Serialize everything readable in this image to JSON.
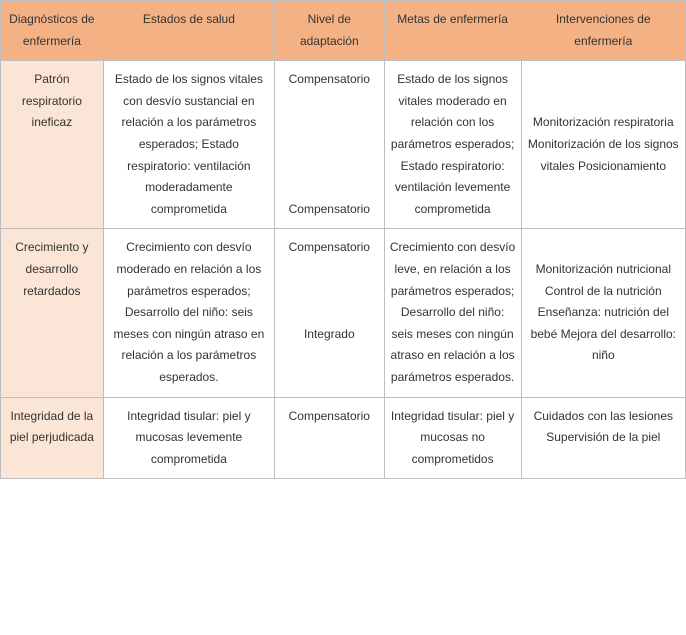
{
  "table": {
    "headers": [
      "Diagnósticos de enfermería",
      "Estados de salud",
      "Nivel de adaptación",
      "Metas de enfermería",
      "Intervenciones de enfermería"
    ],
    "rows": [
      {
        "diagnostico": "Patrón respiratorio ineficaz",
        "estado": "Estado de los signos vitales con desvío sustancial en relación a los parámetros esperados; Estado respiratorio: ventilación moderadamente comprometida",
        "nivel": "Compensatorio\n\n\n\n\n\nCompensatorio",
        "metas": "Estado de los signos vitales moderado en relación con los parámetros esperados; Estado respiratorio: ventilación levemente comprometida",
        "intervenciones": "\n\nMonitorización respiratoria Monitorización de los signos vitales Posicionamiento"
      },
      {
        "diagnostico": "Crecimiento y desarrollo retardados",
        "estado": "Crecimiento con desvío moderado en relación a los parámetros esperados; Desarrollo del niño: seis meses con ningún atraso en relación a los parámetros esperados.",
        "nivel": "Compensatorio\n\n\n\nIntegrado",
        "metas": "Crecimiento con desvío leve, en relación a los parámetros esperados; Desarrollo del niño: seis meses con ningún atraso en relación a los parámetros esperados.",
        "intervenciones": "\nMonitorización nutricional Control de la nutrición Enseñanza: nutrición del bebé Mejora del desarrollo: niño"
      },
      {
        "diagnostico": "Integridad de la piel perjudicada",
        "estado": "Integridad tisular: piel y mucosas levemente comprometida",
        "nivel": "Compensatorio",
        "metas": "Integridad tisular: piel y mucosas no comprometidos",
        "intervenciones": "Cuidados con las lesiones Supervisión de la piel"
      }
    ]
  },
  "styling": {
    "header_bg": "#f4b183",
    "diag_col_bg": "#fbe5d6",
    "border_color": "#bfbfbf",
    "text_color": "#333333",
    "font_family": "Arial, Helvetica, sans-serif",
    "font_size": 12,
    "line_height": 1.8,
    "col_widths_pct": [
      15,
      25,
      16,
      20,
      24
    ]
  }
}
